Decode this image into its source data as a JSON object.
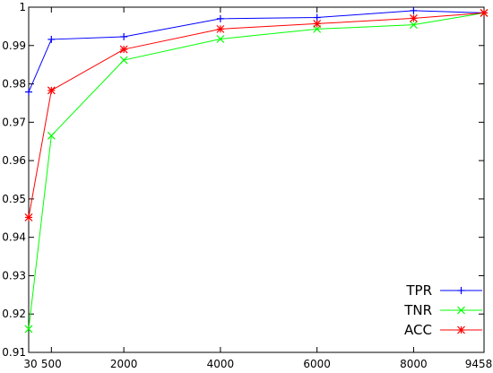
{
  "chart_data": {
    "type": "line",
    "title": "",
    "xlabel": "",
    "ylabel": "",
    "x": [
      30,
      500,
      2000,
      4000,
      6000,
      8000,
      9458
    ],
    "x_tick_labels": [
      "30",
      "500",
      "2000",
      "4000",
      "6000",
      "8000",
      "9458"
    ],
    "ylim": [
      0.91,
      1.0
    ],
    "y_ticks": [
      0.91,
      0.92,
      0.93,
      0.94,
      0.95,
      0.96,
      0.97,
      0.98,
      0.99,
      1
    ],
    "y_tick_labels": [
      "0.91",
      "0.92",
      "0.93",
      "0.94",
      "0.95",
      "0.96",
      "0.97",
      "0.98",
      "0.99",
      "1"
    ],
    "grid": false,
    "legend_position": "bottom-right",
    "series": [
      {
        "name": "TPR",
        "color": "#0000ff",
        "marker": "plus",
        "values": [
          0.9779,
          0.9916,
          0.9923,
          0.997,
          0.9973,
          0.9991,
          0.9985
        ]
      },
      {
        "name": "TNR",
        "color": "#00ff00",
        "marker": "x",
        "values": [
          0.9161,
          0.9665,
          0.9862,
          0.9917,
          0.9943,
          0.9954,
          0.9985
        ]
      },
      {
        "name": "ACC",
        "color": "#ff0000",
        "marker": "star",
        "values": [
          0.9452,
          0.9783,
          0.989,
          0.9943,
          0.9957,
          0.9971,
          0.9985
        ]
      }
    ]
  }
}
